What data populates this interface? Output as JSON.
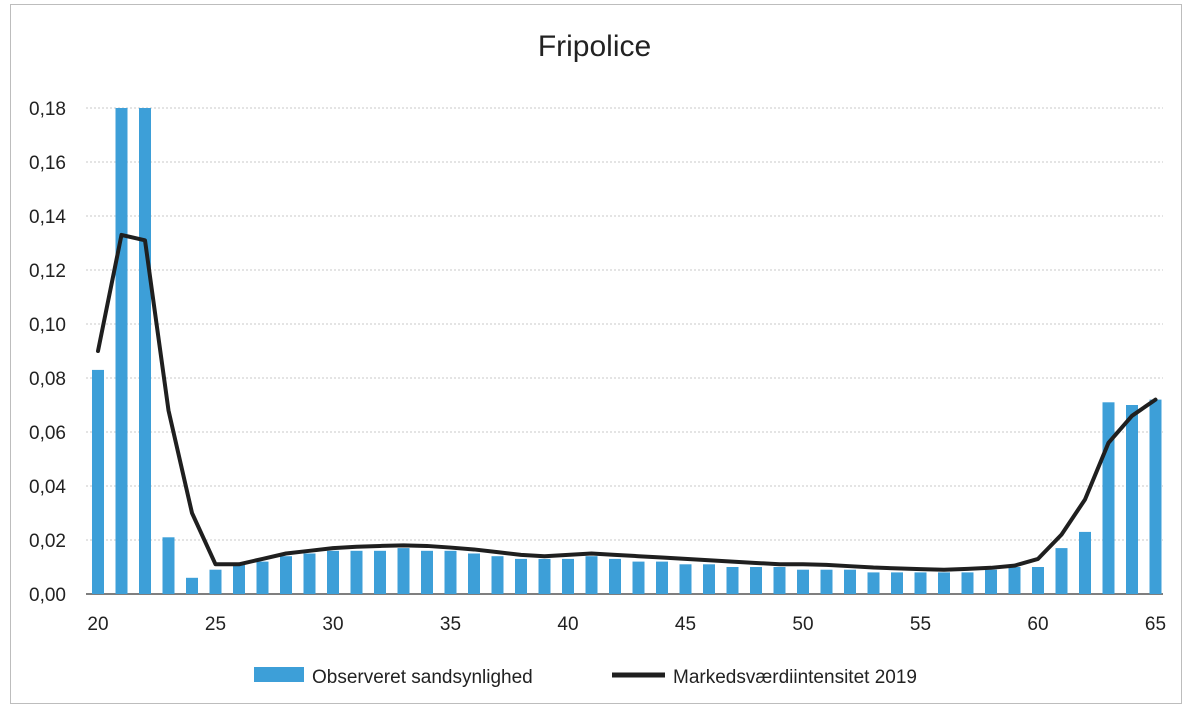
{
  "chart_data": {
    "type": "bar",
    "title": "Fripolice",
    "xlabel": "",
    "ylabel": "",
    "x_ticks": [
      "20",
      "25",
      "30",
      "35",
      "40",
      "45",
      "50",
      "55",
      "60",
      "65"
    ],
    "y_ticks": [
      "0,00",
      "0,02",
      "0,04",
      "0,06",
      "0,08",
      "0,10",
      "0,12",
      "0,14",
      "0,16",
      "0,18"
    ],
    "ylim": [
      0,
      0.18
    ],
    "xlim": [
      20,
      65
    ],
    "grid": true,
    "legend_position": "bottom",
    "series": [
      {
        "name": "Observeret sandsynlighed",
        "kind": "bar",
        "color": "#3d9fd8",
        "x": [
          20,
          21,
          22,
          23,
          24,
          25,
          26,
          27,
          28,
          29,
          30,
          31,
          32,
          33,
          34,
          35,
          36,
          37,
          38,
          39,
          40,
          41,
          42,
          43,
          44,
          45,
          46,
          47,
          48,
          49,
          50,
          51,
          52,
          53,
          54,
          55,
          56,
          57,
          58,
          59,
          60,
          61,
          62,
          63,
          64,
          65
        ],
        "values": [
          0.083,
          0.18,
          0.18,
          0.021,
          0.006,
          0.009,
          0.011,
          0.012,
          0.014,
          0.015,
          0.016,
          0.016,
          0.016,
          0.017,
          0.016,
          0.016,
          0.015,
          0.014,
          0.013,
          0.013,
          0.013,
          0.014,
          0.013,
          0.012,
          0.012,
          0.011,
          0.011,
          0.01,
          0.01,
          0.01,
          0.009,
          0.009,
          0.009,
          0.008,
          0.008,
          0.008,
          0.008,
          0.008,
          0.009,
          0.01,
          0.01,
          0.017,
          0.023,
          0.071,
          0.07,
          0.072
        ]
      },
      {
        "name": "Markedsværdiintensitet 2019",
        "kind": "line",
        "color": "#1f1f1f",
        "x": [
          20,
          21,
          22,
          23,
          24,
          25,
          26,
          27,
          28,
          29,
          30,
          31,
          32,
          33,
          34,
          35,
          36,
          37,
          38,
          39,
          40,
          41,
          42,
          43,
          44,
          45,
          46,
          47,
          48,
          49,
          50,
          51,
          52,
          53,
          54,
          55,
          56,
          57,
          58,
          59,
          60,
          61,
          62,
          63,
          64,
          65
        ],
        "values": [
          0.09,
          0.133,
          0.131,
          0.068,
          0.03,
          0.011,
          0.011,
          0.013,
          0.015,
          0.016,
          0.017,
          0.0175,
          0.0178,
          0.018,
          0.0178,
          0.0172,
          0.0165,
          0.0155,
          0.0145,
          0.014,
          0.0145,
          0.015,
          0.0145,
          0.014,
          0.0135,
          0.013,
          0.0125,
          0.012,
          0.0115,
          0.011,
          0.011,
          0.0108,
          0.0103,
          0.0098,
          0.0095,
          0.0092,
          0.009,
          0.0093,
          0.0097,
          0.0105,
          0.013,
          0.022,
          0.035,
          0.056,
          0.066,
          0.072
        ]
      }
    ]
  }
}
